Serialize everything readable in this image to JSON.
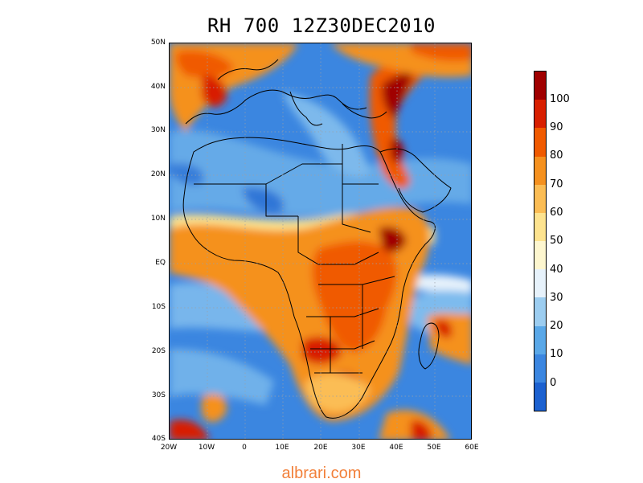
{
  "title": "RH 700 12Z30DEC2010",
  "lat_labels": [
    "50N",
    "40N",
    "30N",
    "20N",
    "10N",
    "EQ",
    "10S",
    "20S",
    "30S",
    "40S"
  ],
  "lon_labels": [
    "20W",
    "10W",
    "0",
    "10E",
    "20E",
    "30E",
    "40E",
    "50E",
    "60E"
  ],
  "colorbar": {
    "labels": [
      "100",
      "90",
      "80",
      "70",
      "60",
      "50",
      "40",
      "30",
      "20",
      "10",
      "0"
    ],
    "colors_top_to_bottom": [
      "#a00000",
      "#d81f00",
      "#f05a00",
      "#f5911f",
      "#fbbd55",
      "#fde38f",
      "#fdf6cf",
      "#e7f2fb",
      "#9ccdf0",
      "#5aa8e8",
      "#3b86e0",
      "#1c61d0"
    ]
  },
  "watermark": "albrari.com"
}
